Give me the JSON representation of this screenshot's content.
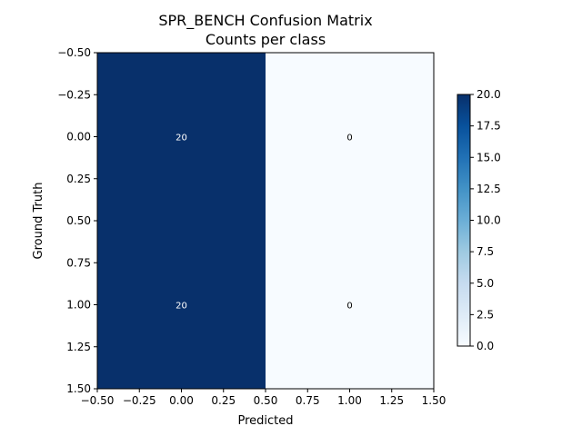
{
  "chart_data": {
    "type": "heatmap",
    "title": "SPR_BENCH Confusion Matrix",
    "subtitle": "Counts per class",
    "xlabel": "Predicted",
    "ylabel": "Ground Truth",
    "rows": [
      0,
      1
    ],
    "cols": [
      0,
      1
    ],
    "values": [
      [
        20,
        0
      ],
      [
        20,
        0
      ]
    ],
    "xlim": [
      -0.5,
      1.5
    ],
    "ylim": [
      1.5,
      -0.5
    ],
    "xticks": [
      "−0.50",
      "−0.25",
      "0.00",
      "0.25",
      "0.50",
      "0.75",
      "1.00",
      "1.25",
      "1.50"
    ],
    "yticks": [
      "−0.50",
      "−0.25",
      "0.00",
      "0.25",
      "0.50",
      "0.75",
      "1.00",
      "1.25",
      "1.50"
    ],
    "colorbar": {
      "min": 0,
      "max": 20,
      "ticks": [
        "0.0",
        "2.5",
        "5.0",
        "7.5",
        "10.0",
        "12.5",
        "15.0",
        "17.5",
        "20.0"
      ]
    },
    "colormap": "Blues",
    "colors": {
      "low": "#f7fbff",
      "high": "#08306b",
      "label_on_dark": "#ffffff",
      "label_on_light": "#000000"
    }
  }
}
